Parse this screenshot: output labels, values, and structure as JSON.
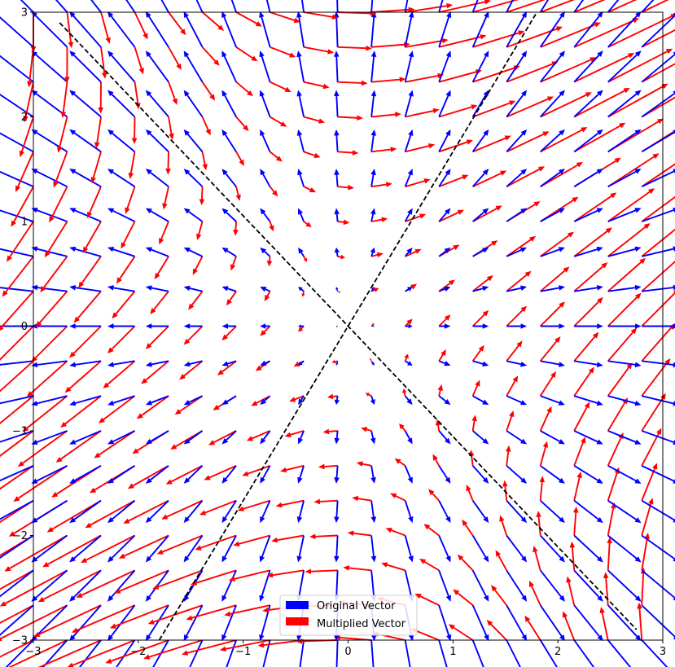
{
  "chart_data": {
    "type": "quiver",
    "title": "",
    "xlabel": "",
    "ylabel": "",
    "xlim": [
      -3,
      3
    ],
    "ylim": [
      -3,
      3
    ],
    "grid": false,
    "x_ticks": [
      -3,
      -2,
      -1,
      0,
      1,
      2,
      3
    ],
    "y_ticks": [
      -3,
      -2,
      -1,
      0,
      1,
      2,
      3
    ],
    "x_tick_labels": [
      "−3",
      "−2",
      "−1",
      "0",
      "1",
      "2",
      "3"
    ],
    "y_tick_labels": [
      "−3",
      "−2",
      "−1",
      "0",
      "1",
      "2",
      "3"
    ],
    "grid_x_from": -3,
    "grid_x_to": 2.8,
    "grid_y_from": -3,
    "grid_y_to": 3,
    "grid_n": 19,
    "vector_field": "v = (x, y)",
    "matrix": [
      [
        1,
        1
      ],
      [
        1,
        0
      ]
    ],
    "series": [
      {
        "name": "Original Vector",
        "color": "#0000ff"
      },
      {
        "name": "Multiplied Vector",
        "color": "#ff0000"
      }
    ],
    "reference_lines": [
      {
        "style": "dashed",
        "color": "#000000",
        "x": [
          -2.75,
          2.75
        ],
        "y": [
          2.9,
          -2.9
        ]
      },
      {
        "style": "dashed",
        "color": "#000000",
        "x": [
          -1.8,
          1.8
        ],
        "y": [
          -3,
          3
        ]
      }
    ],
    "legend": {
      "position": "bottom-center"
    }
  }
}
